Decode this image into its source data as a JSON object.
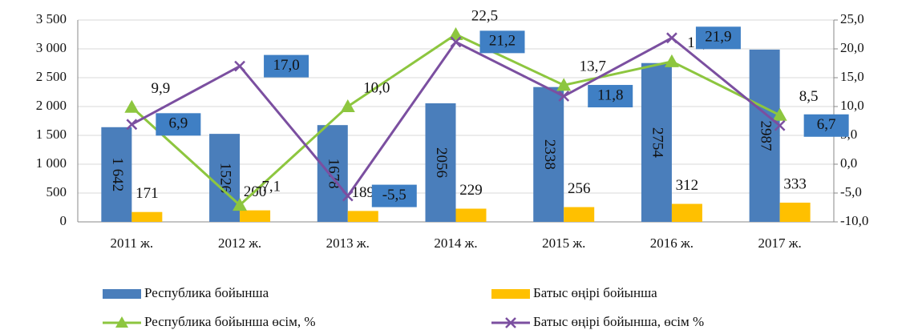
{
  "chart_data": {
    "type": "combo",
    "categories": [
      "2011 ж.",
      "2012 ж.",
      "2013 ж.",
      "2014 ж.",
      "2015 ж.",
      "2016 ж.",
      "2017 ж."
    ],
    "series": [
      {
        "name": "Республика бойынша",
        "color": "#4a7ebb",
        "kind": "bar",
        "values": [
          1642,
          1526,
          1678,
          2056,
          2338,
          2754,
          2987
        ],
        "value_labels": [
          "1 642",
          "1526",
          "1678",
          "2056",
          "2338",
          "2754",
          "2987"
        ]
      },
      {
        "name": "Батыс өңірі бойынша",
        "color": "#ffc000",
        "kind": "bar",
        "values": [
          171,
          200,
          189,
          229,
          256,
          312,
          333
        ]
      },
      {
        "name": "Республика бойынша өсім, %",
        "color": "#8dc63f",
        "kind": "line",
        "axis": "y2",
        "values": [
          9.9,
          -7.1,
          10.0,
          22.5,
          13.7,
          17.8,
          8.5
        ],
        "value_labels": [
          "9,9",
          "-7,1",
          "10,0",
          "22,5",
          "13,7",
          "17,8",
          "8,5"
        ]
      },
      {
        "name": "Батыс өңірі бойынша, өсім %",
        "color": "#7b4fa0",
        "kind": "line",
        "axis": "y2",
        "values": [
          6.9,
          17.0,
          -5.5,
          21.2,
          11.8,
          21.9,
          6.7
        ],
        "value_labels": [
          "6,9",
          "17,0",
          "-5,5",
          "21,2",
          "11,8",
          "21,9",
          "6,7"
        ]
      }
    ],
    "ylim": [
      0,
      3500
    ],
    "yticks": [
      0,
      500,
      {
        "value": 1000,
        "label": "1 000"
      },
      {
        "value": 1500,
        "label": "1 500"
      },
      {
        "value": 2000,
        "label": "2 000"
      },
      {
        "value": 2500,
        "label": "2 500"
      },
      {
        "value": 3000,
        "label": "3 000"
      },
      {
        "value": 3500,
        "label": "3 500"
      }
    ],
    "y2lim": [
      -10,
      25
    ],
    "y2ticks": [
      {
        "value": -10,
        "label": "-10,0"
      },
      {
        "value": -5,
        "label": "-5,0"
      },
      {
        "value": 0,
        "label": "0,0"
      },
      {
        "value": 5,
        "label": "5,0"
      },
      {
        "value": 10,
        "label": "10,0"
      },
      {
        "value": 15,
        "label": "15,0"
      },
      {
        "value": 20,
        "label": "20,0"
      },
      {
        "value": 25,
        "label": "25,0"
      }
    ],
    "grid": true,
    "legend": "bottom"
  }
}
